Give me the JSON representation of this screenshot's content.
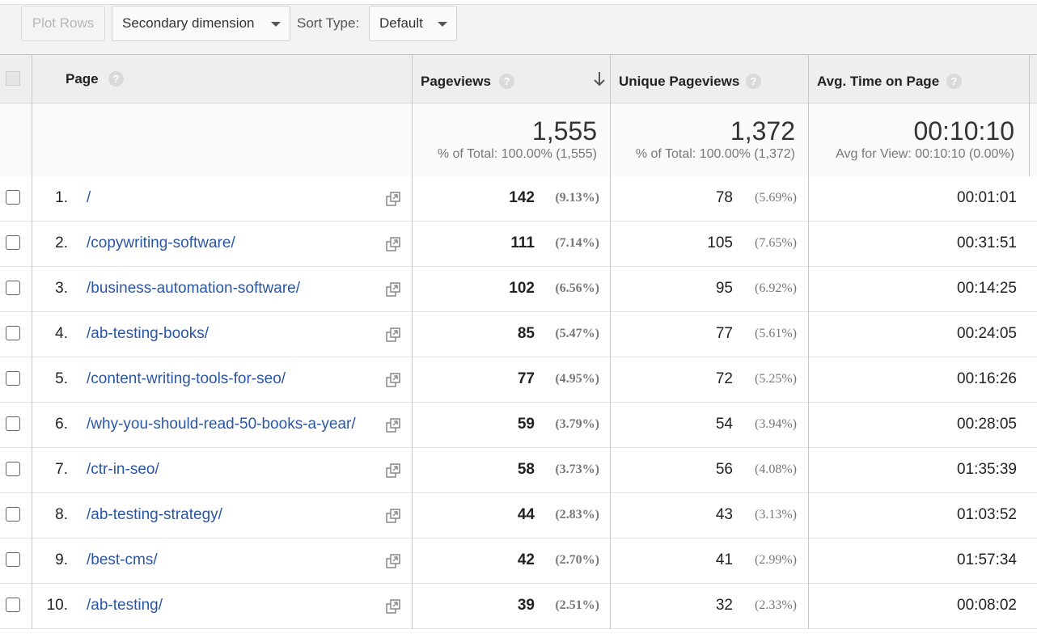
{
  "toolbar": {
    "plot_rows": "Plot Rows",
    "secondary_dimension": "Secondary dimension",
    "sort_type_label": "Sort Type:",
    "sort_type_value": "Default"
  },
  "header": {
    "page": "Page",
    "pageviews": "Pageviews",
    "unique_pageviews": "Unique Pageviews",
    "avg_time": "Avg. Time on Page",
    "help": "?"
  },
  "totals": {
    "pageviews": "1,555",
    "pageviews_sub": "% of Total: 100.00% (1,555)",
    "unique_pageviews": "1,372",
    "unique_pageviews_sub": "% of Total: 100.00% (1,372)",
    "avg_time": "00:10:10",
    "avg_time_sub": "Avg for View: 00:10:10 (0.00%)"
  },
  "rows": [
    {
      "idx": "1.",
      "page": "/",
      "pv": "142",
      "pv_pct": "(9.13%)",
      "upv": "78",
      "upv_pct": "(5.69%)",
      "avg": "00:01:01"
    },
    {
      "idx": "2.",
      "page": "/copywriting-software/",
      "pv": "111",
      "pv_pct": "(7.14%)",
      "upv": "105",
      "upv_pct": "(7.65%)",
      "avg": "00:31:51"
    },
    {
      "idx": "3.",
      "page": "/business-automation-software/",
      "pv": "102",
      "pv_pct": "(6.56%)",
      "upv": "95",
      "upv_pct": "(6.92%)",
      "avg": "00:14:25"
    },
    {
      "idx": "4.",
      "page": "/ab-testing-books/",
      "pv": "85",
      "pv_pct": "(5.47%)",
      "upv": "77",
      "upv_pct": "(5.61%)",
      "avg": "00:24:05"
    },
    {
      "idx": "5.",
      "page": "/content-writing-tools-for-seo/",
      "pv": "77",
      "pv_pct": "(4.95%)",
      "upv": "72",
      "upv_pct": "(5.25%)",
      "avg": "00:16:26"
    },
    {
      "idx": "6.",
      "page": "/why-you-should-read-50-books-a-year/",
      "pv": "59",
      "pv_pct": "(3.79%)",
      "upv": "54",
      "upv_pct": "(3.94%)",
      "avg": "00:28:05"
    },
    {
      "idx": "7.",
      "page": "/ctr-in-seo/",
      "pv": "58",
      "pv_pct": "(3.73%)",
      "upv": "56",
      "upv_pct": "(4.08%)",
      "avg": "01:35:39"
    },
    {
      "idx": "8.",
      "page": "/ab-testing-strategy/",
      "pv": "44",
      "pv_pct": "(2.83%)",
      "upv": "43",
      "upv_pct": "(3.13%)",
      "avg": "01:03:52"
    },
    {
      "idx": "9.",
      "page": "/best-cms/",
      "pv": "42",
      "pv_pct": "(2.70%)",
      "upv": "41",
      "upv_pct": "(2.99%)",
      "avg": "01:57:34"
    },
    {
      "idx": "10.",
      "page": "/ab-testing/",
      "pv": "39",
      "pv_pct": "(2.51%)",
      "upv": "32",
      "upv_pct": "(2.33%)",
      "avg": "00:08:02"
    }
  ]
}
